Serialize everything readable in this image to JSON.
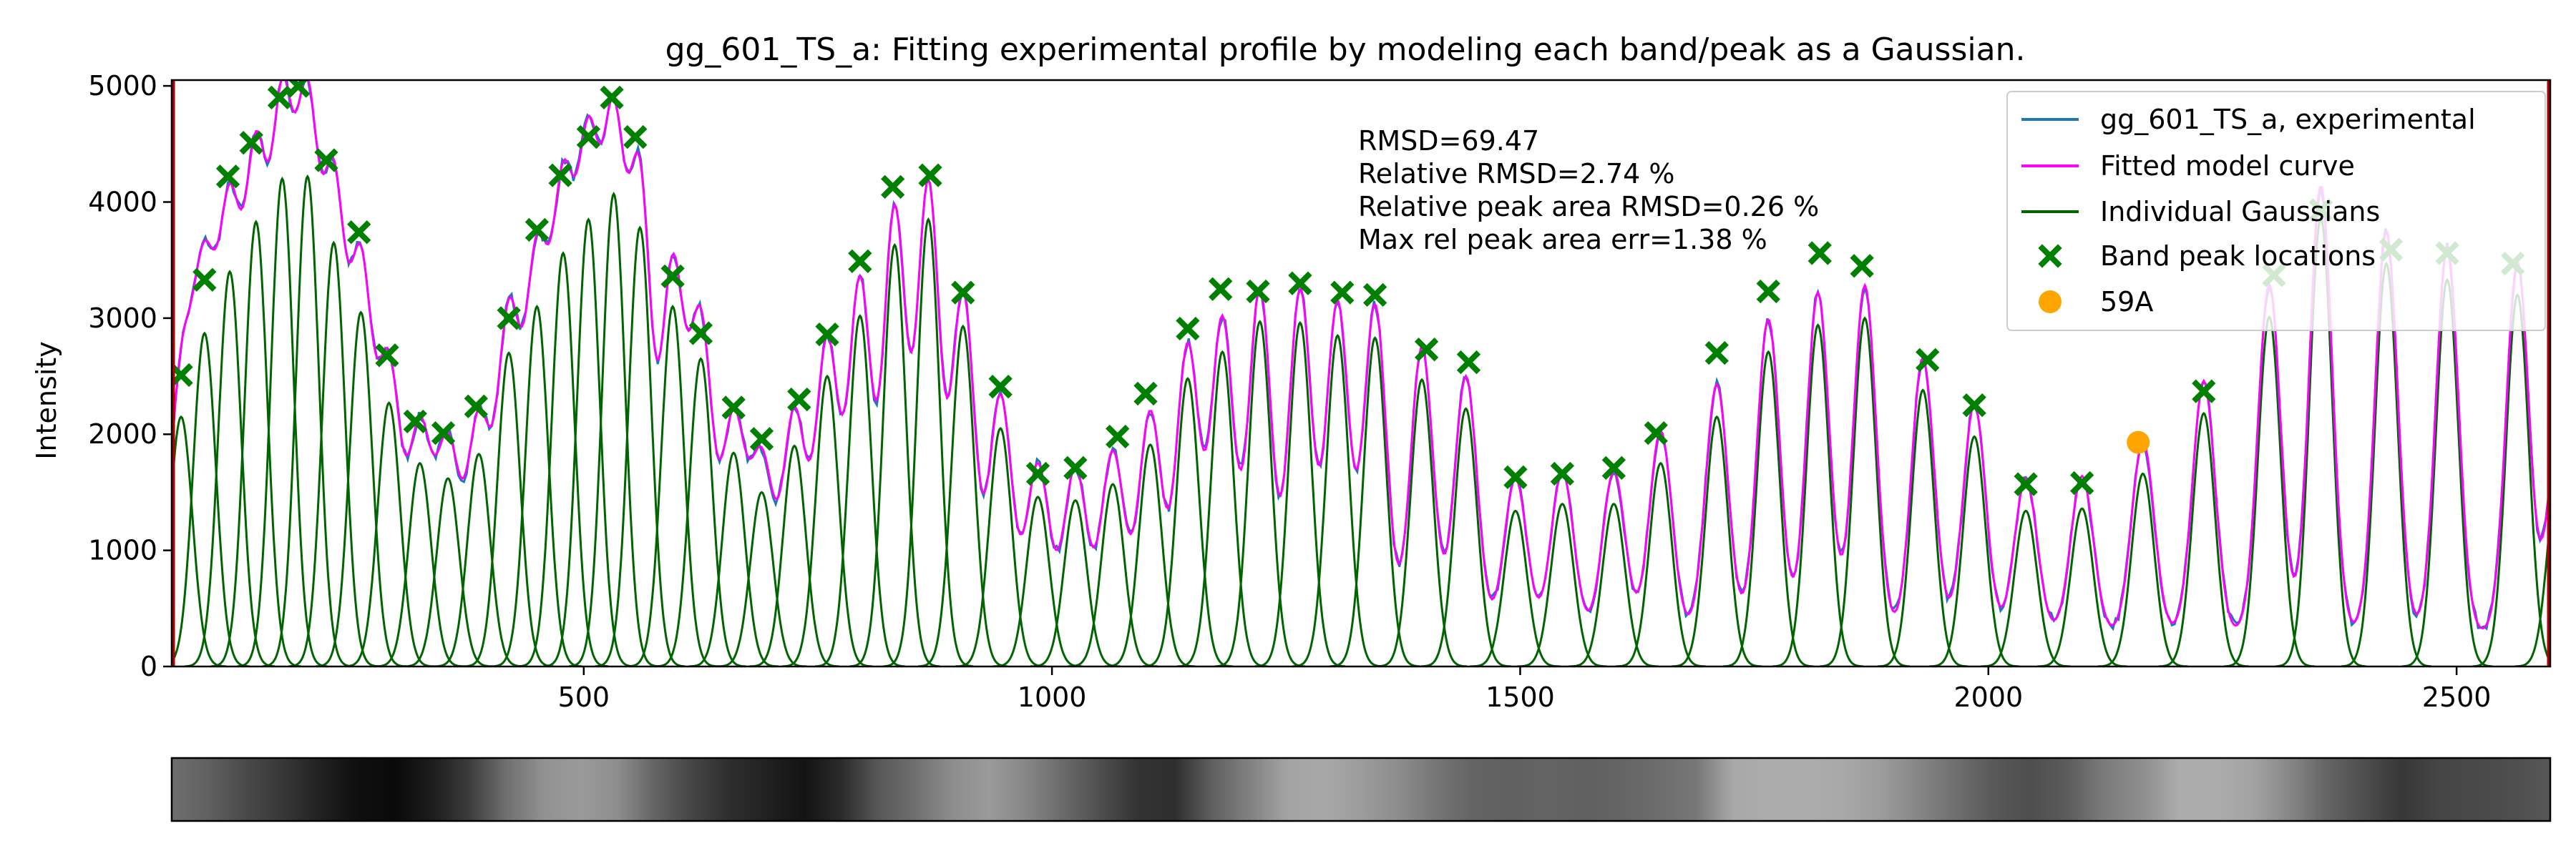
{
  "chart_data": {
    "type": "line",
    "title": "gg_601_TS_a: Fitting experimental profile by modeling each band/peak as a Gaussian.",
    "xlabel": "",
    "ylabel": "Intensity",
    "xlim": [
      60,
      2600
    ],
    "ylim": [
      0,
      5050
    ],
    "xticks": [
      500,
      1000,
      1500,
      2000,
      2500
    ],
    "yticks": [
      0,
      1000,
      2000,
      3000,
      4000,
      5000
    ],
    "grid": false,
    "legend_position": "top-right",
    "legend": [
      {
        "label": "gg_601_TS_a, experimental",
        "kind": "line",
        "color": "#1f77b4"
      },
      {
        "label": "Fitted model curve",
        "kind": "line",
        "color": "#ff00ff"
      },
      {
        "label": "Individual Gaussians",
        "kind": "line",
        "color": "#006400"
      },
      {
        "label": "Band peak locations",
        "kind": "x-marker",
        "color": "#008000"
      },
      {
        "label": "59A",
        "kind": "circle-marker",
        "color": "#ffa500"
      }
    ],
    "annotations": [
      "RMSD=69.47",
      "Relative RMSD=2.74 %",
      "Relative peak area RMSD=0.26 %",
      "Max rel peak area err=1.38 %"
    ],
    "band_peaks": [
      {
        "x": 70,
        "y": 2510
      },
      {
        "x": 95,
        "y": 3330
      },
      {
        "x": 120,
        "y": 4220
      },
      {
        "x": 145,
        "y": 4510
      },
      {
        "x": 175,
        "y": 4900
      },
      {
        "x": 195,
        "y": 5000
      },
      {
        "x": 225,
        "y": 4360
      },
      {
        "x": 260,
        "y": 3740
      },
      {
        "x": 290,
        "y": 2680
      },
      {
        "x": 320,
        "y": 2110
      },
      {
        "x": 350,
        "y": 2010
      },
      {
        "x": 385,
        "y": 2240
      },
      {
        "x": 420,
        "y": 3000
      },
      {
        "x": 450,
        "y": 3760
      },
      {
        "x": 475,
        "y": 4230
      },
      {
        "x": 505,
        "y": 4560
      },
      {
        "x": 530,
        "y": 4900
      },
      {
        "x": 555,
        "y": 4560
      },
      {
        "x": 595,
        "y": 3360
      },
      {
        "x": 625,
        "y": 2870
      },
      {
        "x": 660,
        "y": 2230
      },
      {
        "x": 690,
        "y": 1960
      },
      {
        "x": 730,
        "y": 2300
      },
      {
        "x": 760,
        "y": 2860
      },
      {
        "x": 795,
        "y": 3490
      },
      {
        "x": 830,
        "y": 4130
      },
      {
        "x": 870,
        "y": 4230
      },
      {
        "x": 905,
        "y": 3220
      },
      {
        "x": 945,
        "y": 2410
      },
      {
        "x": 985,
        "y": 1660
      },
      {
        "x": 1025,
        "y": 1710
      },
      {
        "x": 1070,
        "y": 1980
      },
      {
        "x": 1100,
        "y": 2350
      },
      {
        "x": 1145,
        "y": 2910
      },
      {
        "x": 1180,
        "y": 3250
      },
      {
        "x": 1220,
        "y": 3230
      },
      {
        "x": 1265,
        "y": 3300
      },
      {
        "x": 1310,
        "y": 3220
      },
      {
        "x": 1345,
        "y": 3200
      },
      {
        "x": 1400,
        "y": 2730
      },
      {
        "x": 1445,
        "y": 2620
      },
      {
        "x": 1495,
        "y": 1630
      },
      {
        "x": 1545,
        "y": 1660
      },
      {
        "x": 1600,
        "y": 1710
      },
      {
        "x": 1645,
        "y": 2010
      },
      {
        "x": 1710,
        "y": 2700
      },
      {
        "x": 1765,
        "y": 3230
      },
      {
        "x": 1820,
        "y": 3560
      },
      {
        "x": 1865,
        "y": 3450
      },
      {
        "x": 1935,
        "y": 2640
      },
      {
        "x": 1985,
        "y": 2250
      },
      {
        "x": 2040,
        "y": 1570
      },
      {
        "x": 2100,
        "y": 1580
      },
      {
        "x": 2230,
        "y": 2370
      },
      {
        "x": 2305,
        "y": 3370
      },
      {
        "x": 2355,
        "y": 3930
      },
      {
        "x": 2430,
        "y": 3590
      },
      {
        "x": 2490,
        "y": 3560
      },
      {
        "x": 2560,
        "y": 3470
      }
    ],
    "gaussians": [
      {
        "center": 70,
        "amp": 2150
      },
      {
        "center": 95,
        "amp": 2870
      },
      {
        "center": 122,
        "amp": 3400
      },
      {
        "center": 150,
        "amp": 3830
      },
      {
        "center": 178,
        "amp": 4200
      },
      {
        "center": 205,
        "amp": 4220
      },
      {
        "center": 233,
        "amp": 3650
      },
      {
        "center": 262,
        "amp": 3050
      },
      {
        "center": 292,
        "amp": 2270
      },
      {
        "center": 325,
        "amp": 1750
      },
      {
        "center": 355,
        "amp": 1620
      },
      {
        "center": 388,
        "amp": 1830
      },
      {
        "center": 420,
        "amp": 2700
      },
      {
        "center": 450,
        "amp": 3100
      },
      {
        "center": 478,
        "amp": 3560
      },
      {
        "center": 505,
        "amp": 3850
      },
      {
        "center": 532,
        "amp": 4070
      },
      {
        "center": 560,
        "amp": 3780
      },
      {
        "center": 595,
        "amp": 3100
      },
      {
        "center": 625,
        "amp": 2650
      },
      {
        "center": 660,
        "amp": 1840
      },
      {
        "center": 690,
        "amp": 1500
      },
      {
        "center": 725,
        "amp": 1900
      },
      {
        "center": 760,
        "amp": 2500
      },
      {
        "center": 795,
        "amp": 3020
      },
      {
        "center": 832,
        "amp": 3630
      },
      {
        "center": 868,
        "amp": 3850
      },
      {
        "center": 905,
        "amp": 2930
      },
      {
        "center": 945,
        "amp": 2050
      },
      {
        "center": 985,
        "amp": 1460
      },
      {
        "center": 1025,
        "amp": 1430
      },
      {
        "center": 1065,
        "amp": 1570
      },
      {
        "center": 1105,
        "amp": 1910
      },
      {
        "center": 1145,
        "amp": 2480
      },
      {
        "center": 1182,
        "amp": 2710
      },
      {
        "center": 1222,
        "amp": 2970
      },
      {
        "center": 1265,
        "amp": 2960
      },
      {
        "center": 1305,
        "amp": 2850
      },
      {
        "center": 1345,
        "amp": 2830
      },
      {
        "center": 1395,
        "amp": 2470
      },
      {
        "center": 1442,
        "amp": 2220
      },
      {
        "center": 1495,
        "amp": 1340
      },
      {
        "center": 1545,
        "amp": 1400
      },
      {
        "center": 1600,
        "amp": 1400
      },
      {
        "center": 1650,
        "amp": 1750
      },
      {
        "center": 1710,
        "amp": 2150
      },
      {
        "center": 1765,
        "amp": 2710
      },
      {
        "center": 1818,
        "amp": 2940
      },
      {
        "center": 1868,
        "amp": 3000
      },
      {
        "center": 1930,
        "amp": 2380
      },
      {
        "center": 1985,
        "amp": 1980
      },
      {
        "center": 2040,
        "amp": 1340
      },
      {
        "center": 2100,
        "amp": 1360
      },
      {
        "center": 2165,
        "amp": 1660
      },
      {
        "center": 2230,
        "amp": 2180
      },
      {
        "center": 2300,
        "amp": 3010
      },
      {
        "center": 2355,
        "amp": 3860
      },
      {
        "center": 2425,
        "amp": 3470
      },
      {
        "center": 2490,
        "amp": 3330
      },
      {
        "center": 2565,
        "amp": 3200
      },
      {
        "center": 2610,
        "amp": 1800
      }
    ],
    "special_marker": {
      "label": "59A",
      "x": 2160,
      "y": 1930
    }
  },
  "colors": {
    "experimental": "#1f77b4",
    "fitted": "#ff00ff",
    "gaussian": "#006400",
    "peak_marker": "#008000",
    "special": "#ffa500",
    "lane_boundary": "#b00000"
  },
  "lane_strip": {
    "intensity": [
      0.55,
      0.62,
      0.72,
      0.8,
      0.9,
      0.98,
      1.0,
      0.92,
      0.78,
      0.55,
      0.4,
      0.36,
      0.42,
      0.6,
      0.74,
      0.84,
      0.9,
      0.96,
      0.86,
      0.66,
      0.55,
      0.42,
      0.36,
      0.45,
      0.58,
      0.7,
      0.82,
      0.84,
      0.62,
      0.47,
      0.32,
      0.3,
      0.35,
      0.42,
      0.52,
      0.6,
      0.62,
      0.6,
      0.62,
      0.6,
      0.56,
      0.52,
      0.3,
      0.28,
      0.28,
      0.3,
      0.35,
      0.45,
      0.55,
      0.65,
      0.7,
      0.64,
      0.5,
      0.42,
      0.28,
      0.28,
      0.32,
      0.45,
      0.6,
      0.7,
      0.8,
      0.74,
      0.72,
      0.7,
      0.66
    ]
  }
}
